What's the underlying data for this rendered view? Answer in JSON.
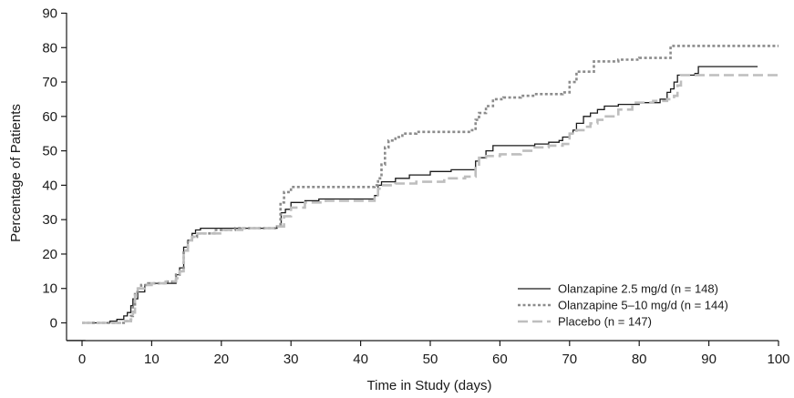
{
  "chart_data": {
    "type": "line",
    "step": true,
    "xlabel": "Time in Study (days)",
    "ylabel": "Percentage of Patients",
    "xlim": [
      -2,
      100
    ],
    "ylim": [
      -5,
      90
    ],
    "xticks": [
      0,
      10,
      20,
      30,
      40,
      50,
      60,
      70,
      80,
      90,
      100
    ],
    "yticks": [
      0,
      10,
      20,
      30,
      40,
      50,
      60,
      70,
      80,
      90
    ],
    "grid": false,
    "legend_position": "bottom-right",
    "series": [
      {
        "name": "Olanzapine 2.5 mg/d (n = 148)",
        "color": "#1a1a1a",
        "style": "solid",
        "points": [
          [
            0,
            0
          ],
          [
            4,
            0.5
          ],
          [
            5,
            1
          ],
          [
            6,
            2
          ],
          [
            6.5,
            3
          ],
          [
            7,
            5
          ],
          [
            7.3,
            7
          ],
          [
            8,
            9
          ],
          [
            9,
            11
          ],
          [
            10,
            11.5
          ],
          [
            13.5,
            14
          ],
          [
            14,
            16
          ],
          [
            14.6,
            22
          ],
          [
            15.2,
            24
          ],
          [
            15.8,
            26
          ],
          [
            16.3,
            27
          ],
          [
            17,
            27.5
          ],
          [
            28,
            28
          ],
          [
            28.6,
            32
          ],
          [
            29.2,
            33
          ],
          [
            30,
            35
          ],
          [
            32,
            35.5
          ],
          [
            34,
            36
          ],
          [
            42,
            37
          ],
          [
            42.5,
            40
          ],
          [
            43,
            41
          ],
          [
            45,
            42
          ],
          [
            47,
            43
          ],
          [
            50,
            44
          ],
          [
            53,
            44.5
          ],
          [
            56.5,
            47
          ],
          [
            57,
            48
          ],
          [
            58,
            50
          ],
          [
            59,
            51.5
          ],
          [
            60,
            51.5
          ],
          [
            65,
            52
          ],
          [
            67,
            52.5
          ],
          [
            68.5,
            53
          ],
          [
            69,
            54
          ],
          [
            70,
            55
          ],
          [
            70.5,
            56
          ],
          [
            71,
            58
          ],
          [
            72,
            60
          ],
          [
            73,
            61
          ],
          [
            74,
            62
          ],
          [
            75,
            63
          ],
          [
            77,
            63.5
          ],
          [
            80,
            64
          ],
          [
            83,
            65
          ],
          [
            84,
            67
          ],
          [
            84.5,
            68
          ],
          [
            85,
            70
          ],
          [
            85.5,
            72
          ],
          [
            86,
            72
          ],
          [
            88,
            72.5
          ],
          [
            88.5,
            74.5
          ],
          [
            97,
            74.5
          ]
        ]
      },
      {
        "name": "Olanzapine 5–10 mg/d (n = 144)",
        "color": "#8c8c8c",
        "style": "dotted",
        "points": [
          [
            0,
            0
          ],
          [
            5,
            0
          ],
          [
            6,
            0.5
          ],
          [
            7,
            2
          ],
          [
            7.3,
            5
          ],
          [
            7.6,
            9
          ],
          [
            8,
            10
          ],
          [
            8.5,
            11
          ],
          [
            9.5,
            11.5
          ],
          [
            12,
            12
          ],
          [
            13.5,
            14
          ],
          [
            14,
            15
          ],
          [
            14.6,
            21
          ],
          [
            15.2,
            24
          ],
          [
            15.8,
            25
          ],
          [
            16.5,
            26
          ],
          [
            19,
            27
          ],
          [
            22,
            27.5
          ],
          [
            28,
            28
          ],
          [
            28.5,
            35
          ],
          [
            29,
            38
          ],
          [
            30,
            39.5
          ],
          [
            42,
            40
          ],
          [
            42.5,
            42
          ],
          [
            43,
            46
          ],
          [
            43.5,
            51
          ],
          [
            44,
            53
          ],
          [
            45,
            54
          ],
          [
            46,
            55
          ],
          [
            48,
            55.5
          ],
          [
            56,
            56
          ],
          [
            56.5,
            59
          ],
          [
            57,
            61
          ],
          [
            58,
            63
          ],
          [
            59,
            65
          ],
          [
            60.5,
            65.5
          ],
          [
            63,
            66
          ],
          [
            65,
            66.5
          ],
          [
            69,
            67
          ],
          [
            70,
            70
          ],
          [
            71,
            73
          ],
          [
            73.5,
            76
          ],
          [
            77,
            76.5
          ],
          [
            80,
            77
          ],
          [
            84.5,
            80.5
          ],
          [
            100,
            80.5
          ]
        ]
      },
      {
        "name": "Placebo (n = 147)",
        "color": "#bebebe",
        "style": "dashed",
        "points": [
          [
            0,
            0
          ],
          [
            5,
            0
          ],
          [
            6,
            0.5
          ],
          [
            7,
            1
          ],
          [
            7.3,
            3
          ],
          [
            7.6,
            8
          ],
          [
            8,
            10
          ],
          [
            9,
            11
          ],
          [
            10,
            11.5
          ],
          [
            12,
            12
          ],
          [
            13.5,
            13
          ],
          [
            14,
            15
          ],
          [
            14.6,
            21
          ],
          [
            15.2,
            24
          ],
          [
            15.8,
            25
          ],
          [
            16.5,
            26
          ],
          [
            20,
            27
          ],
          [
            23,
            27.5
          ],
          [
            28,
            28
          ],
          [
            29,
            31
          ],
          [
            30,
            33.5
          ],
          [
            32,
            35
          ],
          [
            35,
            35.5
          ],
          [
            42,
            36.5
          ],
          [
            42.5,
            39
          ],
          [
            43,
            40
          ],
          [
            45,
            40.5
          ],
          [
            48,
            41
          ],
          [
            52,
            42
          ],
          [
            55,
            42.5
          ],
          [
            56.5,
            46
          ],
          [
            57,
            48
          ],
          [
            58,
            48.5
          ],
          [
            60,
            49
          ],
          [
            63,
            50
          ],
          [
            65,
            51
          ],
          [
            67,
            51.5
          ],
          [
            69,
            52
          ],
          [
            70,
            55
          ],
          [
            71,
            56
          ],
          [
            72,
            57
          ],
          [
            73,
            58
          ],
          [
            74,
            59
          ],
          [
            75,
            60
          ],
          [
            77,
            62
          ],
          [
            79,
            64
          ],
          [
            82,
            64.5
          ],
          [
            84,
            65
          ],
          [
            85,
            66
          ],
          [
            85.5,
            69
          ],
          [
            86,
            72
          ],
          [
            100,
            72
          ]
        ]
      }
    ]
  }
}
